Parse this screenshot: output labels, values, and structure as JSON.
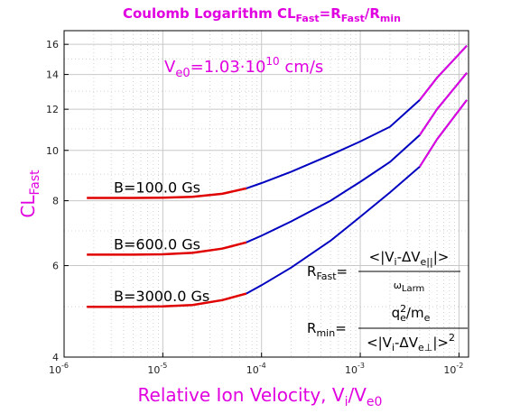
{
  "chart_data": {
    "type": "line",
    "title": {
      "prefix": "Coulomb Logarithm CL",
      "sub1": "Fast",
      "mid": "=R",
      "sub2": "Fast",
      "mid2": "/R",
      "sub3": "min"
    },
    "annotation": {
      "prefix": "V",
      "sub": "e0",
      "mid": "=1.03·10",
      "sup": "10",
      "suffix": " cm/s"
    },
    "xlabel": {
      "prefix": "Relative Ion Velocity, V",
      "sub1": "i",
      "mid": "/V",
      "sub2": "e0"
    },
    "ylabel": {
      "prefix": "CL",
      "sub": "Fast"
    },
    "x_scale": "log",
    "y_scale": "log",
    "xlim": [
      1e-06,
      0.0125
    ],
    "ylim": [
      4,
      17
    ],
    "grid": true,
    "x_ticks": [
      {
        "value": 1e-06,
        "base": "10",
        "exp": "-6"
      },
      {
        "value": 1e-05,
        "base": "10",
        "exp": "-5"
      },
      {
        "value": 0.0001,
        "base": "10",
        "exp": "-4"
      },
      {
        "value": 0.001,
        "base": "10",
        "exp": "-3"
      },
      {
        "value": 0.01,
        "base": "10",
        "exp": "-2"
      }
    ],
    "y_ticks": [
      {
        "value": 4,
        "label": "4"
      },
      {
        "value": 6,
        "label": "6"
      },
      {
        "value": 8,
        "label": "8"
      },
      {
        "value": 10,
        "label": "10"
      },
      {
        "value": 12,
        "label": "12"
      },
      {
        "value": 14,
        "label": "14"
      },
      {
        "value": 16,
        "label": "16"
      }
    ],
    "colors": {
      "low_velocity": "#e00000",
      "high_velocity": "#0000c0",
      "title": "#e000e0",
      "grid": "#c8c8c8"
    },
    "series": [
      {
        "name": "B=100.0 Gs",
        "points": [
          [
            1.7e-06,
            8.1
          ],
          [
            5e-06,
            8.1
          ],
          [
            1e-05,
            8.11
          ],
          [
            2e-05,
            8.14
          ],
          [
            4e-05,
            8.25
          ],
          [
            7e-05,
            8.45
          ],
          [
            0.0001,
            8.65
          ],
          [
            0.0002,
            9.1
          ],
          [
            0.0005,
            9.8
          ],
          [
            0.001,
            10.4
          ],
          [
            0.002,
            11.1
          ],
          [
            0.004,
            12.5
          ],
          [
            0.006,
            13.8
          ],
          [
            0.012,
            15.9
          ]
        ]
      },
      {
        "name": "B=600.0 Gs",
        "points": [
          [
            1.7e-06,
            6.3
          ],
          [
            5e-06,
            6.3
          ],
          [
            1e-05,
            6.31
          ],
          [
            2e-05,
            6.35
          ],
          [
            4e-05,
            6.47
          ],
          [
            7e-05,
            6.65
          ],
          [
            0.0001,
            6.85
          ],
          [
            0.0002,
            7.3
          ],
          [
            0.0005,
            8.0
          ],
          [
            0.001,
            8.7
          ],
          [
            0.002,
            9.5
          ],
          [
            0.004,
            10.7
          ],
          [
            0.006,
            12.0
          ],
          [
            0.012,
            14.1
          ]
        ]
      },
      {
        "name": "B=3000.0 Gs",
        "points": [
          [
            1.7e-06,
            5.0
          ],
          [
            5e-06,
            5.0
          ],
          [
            1e-05,
            5.01
          ],
          [
            2e-05,
            5.04
          ],
          [
            4e-05,
            5.15
          ],
          [
            7e-05,
            5.3
          ],
          [
            0.0001,
            5.5
          ],
          [
            0.0002,
            5.95
          ],
          [
            0.0005,
            6.7
          ],
          [
            0.001,
            7.45
          ],
          [
            0.002,
            8.3
          ],
          [
            0.004,
            9.3
          ],
          [
            0.006,
            10.5
          ],
          [
            0.012,
            12.5
          ]
        ]
      }
    ],
    "formula_fast": {
      "lhs": "R",
      "lhs_sub": "Fast",
      "eq": "=",
      "num_prefix": "<|V",
      "num_sub1": "i",
      "num_mid": "-ΔV",
      "num_sub2": "e||",
      "num_suffix": "|>",
      "den": "ω",
      "den_sub": "Larm"
    },
    "formula_min": {
      "lhs": "R",
      "lhs_sub": "min",
      "eq": "=",
      "num_q": "q",
      "num_q_sup": "2",
      "num_q_sub": "e",
      "num_mid": "/m",
      "num_sub": "e",
      "den_prefix": "<|V",
      "den_sub1": "i",
      "den_mid": "-ΔV",
      "den_sub2": "e⊥",
      "den_suffix": "|>",
      "den_sup": "2"
    }
  }
}
